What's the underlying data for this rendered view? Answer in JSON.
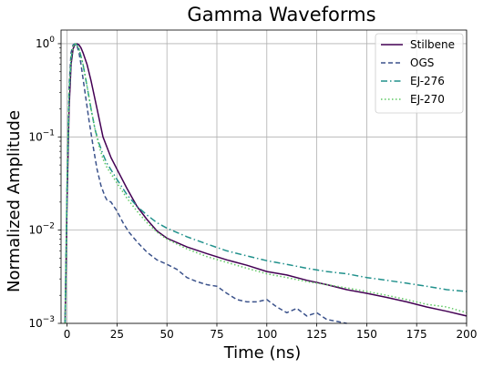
{
  "chart_data": {
    "type": "line",
    "title": "Gamma Waveforms",
    "xlabel": "Time (ns)",
    "ylabel": "Normalized Amplitude",
    "xlim": [
      -3,
      200
    ],
    "ylim": [
      0.001,
      1.4
    ],
    "yscale": "log",
    "grid": true,
    "legend_position": "top-right",
    "xticks": [
      0,
      25,
      50,
      75,
      100,
      125,
      150,
      175,
      200
    ],
    "xtick_labels": [
      "0",
      "25",
      "50",
      "75",
      "100",
      "125",
      "150",
      "175",
      "200"
    ],
    "yticks": [
      0.001,
      0.01,
      0.1,
      1
    ],
    "ytick_labels": [
      {
        "base": "10",
        "exp": "−3"
      },
      {
        "base": "10",
        "exp": "−2"
      },
      {
        "base": "10",
        "exp": "−1"
      },
      {
        "base": "10",
        "exp": "0"
      }
    ],
    "series": [
      {
        "name": "Stilbene",
        "color": "#440154",
        "dash": "solid",
        "x": [
          -1,
          0,
          1,
          2,
          3,
          4,
          5,
          6,
          7,
          8,
          10,
          12,
          15,
          18,
          22,
          25,
          30,
          35,
          40,
          45,
          50,
          60,
          70,
          80,
          90,
          100,
          110,
          120,
          130,
          140,
          150,
          160,
          170,
          180,
          190,
          200
        ],
        "y": [
          0.001,
          0.02,
          0.2,
          0.6,
          0.88,
          0.98,
          1.0,
          0.97,
          0.9,
          0.8,
          0.6,
          0.4,
          0.2,
          0.1,
          0.06,
          0.045,
          0.028,
          0.018,
          0.013,
          0.0098,
          0.0082,
          0.0066,
          0.0056,
          0.0048,
          0.0042,
          0.0036,
          0.0033,
          0.0029,
          0.0026,
          0.0023,
          0.0021,
          0.0019,
          0.0017,
          0.0015,
          0.00135,
          0.0012
        ]
      },
      {
        "name": "OGS",
        "color": "#3b528b",
        "dash": "dashed",
        "x": [
          -1,
          0,
          1,
          2,
          3,
          4,
          5,
          6,
          7,
          9,
          11,
          13,
          15,
          17,
          19,
          20,
          22,
          25,
          28,
          31,
          35,
          40,
          45,
          50,
          55,
          60,
          65,
          70,
          75,
          80,
          85,
          90,
          95,
          100,
          105,
          110,
          115,
          120,
          125,
          130,
          135,
          140
        ],
        "y": [
          0.001,
          0.03,
          0.35,
          0.8,
          0.97,
          1.0,
          0.95,
          0.8,
          0.6,
          0.3,
          0.15,
          0.08,
          0.045,
          0.03,
          0.023,
          0.021,
          0.02,
          0.016,
          0.012,
          0.0095,
          0.0075,
          0.0058,
          0.0048,
          0.0043,
          0.0038,
          0.0031,
          0.0028,
          0.0026,
          0.0025,
          0.0021,
          0.0018,
          0.0017,
          0.0017,
          0.0018,
          0.0015,
          0.0013,
          0.00145,
          0.0012,
          0.0013,
          0.0011,
          0.00105,
          0.001
        ]
      },
      {
        "name": "EJ-276",
        "color": "#21918c",
        "dash": "dashdot",
        "x": [
          -1,
          0,
          1,
          2,
          3,
          4,
          5,
          6,
          8,
          10,
          12,
          14,
          16,
          18,
          20,
          25,
          30,
          35,
          40,
          45,
          50,
          60,
          70,
          80,
          90,
          100,
          110,
          120,
          130,
          140,
          150,
          160,
          170,
          180,
          190,
          200
        ],
        "y": [
          0.001,
          0.03,
          0.3,
          0.7,
          0.93,
          1.0,
          0.97,
          0.88,
          0.6,
          0.35,
          0.2,
          0.12,
          0.085,
          0.065,
          0.052,
          0.035,
          0.024,
          0.018,
          0.0145,
          0.012,
          0.0105,
          0.0085,
          0.0071,
          0.006,
          0.0053,
          0.0047,
          0.0043,
          0.0039,
          0.0036,
          0.0034,
          0.0031,
          0.0029,
          0.0027,
          0.0025,
          0.0023,
          0.0022
        ]
      },
      {
        "name": "EJ-270",
        "color": "#5ec962",
        "dash": "dotted",
        "x": [
          -1,
          0,
          1,
          2,
          3,
          4,
          5,
          6,
          8,
          10,
          12,
          14,
          16,
          18,
          20,
          25,
          30,
          35,
          40,
          45,
          50,
          60,
          70,
          80,
          90,
          100,
          110,
          120,
          130,
          140,
          150,
          160,
          170,
          180,
          190,
          200
        ],
        "y": [
          0.001,
          0.03,
          0.3,
          0.7,
          0.93,
          1.0,
          0.97,
          0.88,
          0.6,
          0.35,
          0.2,
          0.12,
          0.08,
          0.058,
          0.047,
          0.032,
          0.022,
          0.016,
          0.012,
          0.0095,
          0.008,
          0.0063,
          0.0052,
          0.0045,
          0.0039,
          0.0034,
          0.0031,
          0.0028,
          0.0026,
          0.0024,
          0.0022,
          0.002,
          0.0018,
          0.0016,
          0.0015,
          0.0013
        ]
      }
    ]
  }
}
